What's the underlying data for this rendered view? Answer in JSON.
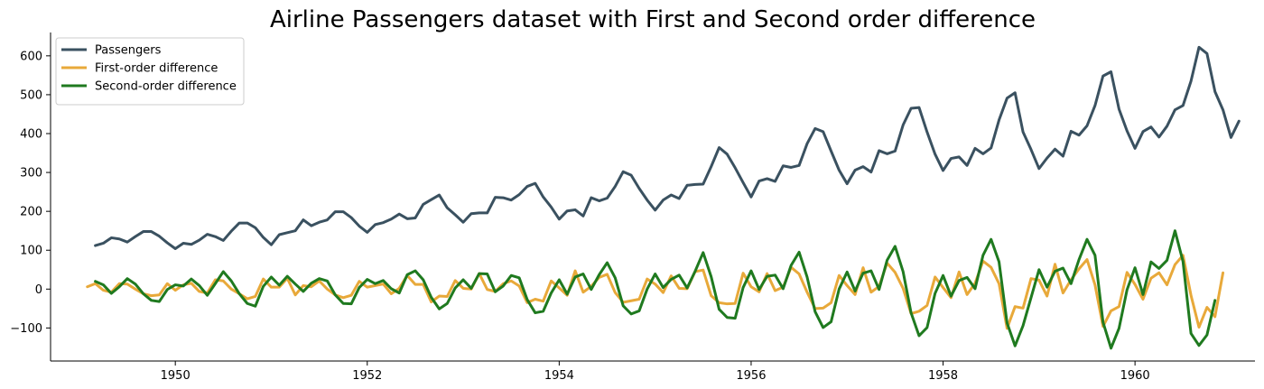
{
  "chart_data": {
    "type": "line",
    "title": "Airline Passengers dataset with First and Second order difference",
    "xlabel": "",
    "ylabel": "",
    "xlim": [
      1948.7,
      1961.25
    ],
    "ylim": [
      -185,
      660
    ],
    "x_ticks": [
      1950,
      1952,
      1954,
      1956,
      1958,
      1960
    ],
    "y_ticks": [
      -100,
      0,
      100,
      200,
      300,
      400,
      500,
      600
    ],
    "x_start": 1949.0833,
    "x_step": 0.083333,
    "grid": false,
    "legend_position": "top-left",
    "series": [
      {
        "name": "Passengers",
        "color": "#3a5160",
        "values": [
          112,
          118,
          132,
          129,
          121,
          135,
          148,
          148,
          136,
          119,
          104,
          118,
          115,
          126,
          141,
          135,
          125,
          149,
          170,
          170,
          158,
          133,
          114,
          140,
          145,
          150,
          178,
          163,
          172,
          178,
          199,
          199,
          184,
          162,
          146,
          166,
          171,
          180,
          193,
          181,
          183,
          218,
          230,
          242,
          209,
          191,
          172,
          194,
          196,
          196,
          236,
          235,
          229,
          243,
          264,
          272,
          237,
          211,
          180,
          201,
          204,
          188,
          235,
          227,
          234,
          264,
          302,
          293,
          259,
          229,
          203,
          229,
          242,
          233,
          267,
          269,
          270,
          315,
          364,
          347,
          312,
          274,
          237,
          278,
          284,
          277,
          317,
          313,
          318,
          374,
          413,
          405,
          355,
          306,
          271,
          306,
          315,
          301,
          356,
          348,
          355,
          422,
          465,
          467,
          404,
          347,
          305,
          336,
          340,
          318,
          362,
          348,
          363,
          435,
          491,
          505,
          404,
          359,
          310,
          337,
          360,
          342,
          406,
          396,
          420,
          472,
          548,
          559,
          463,
          407,
          362,
          405,
          417,
          391,
          419,
          461,
          472,
          535,
          622,
          606,
          508,
          461,
          390,
          432
        ],
        "first_index": 1
      },
      {
        "name": "First-order difference",
        "color": "#e8a93a",
        "values": [
          6,
          14,
          -3,
          -8,
          14,
          13,
          0,
          -12,
          -17,
          -15,
          14,
          -3,
          11,
          15,
          -6,
          -10,
          24,
          21,
          0,
          -12,
          -25,
          -19,
          26,
          5,
          5,
          28,
          -15,
          9,
          6,
          21,
          0,
          -15,
          -22,
          -16,
          20,
          5,
          9,
          13,
          -12,
          2,
          35,
          12,
          12,
          -33,
          -18,
          -19,
          22,
          2,
          0,
          40,
          -1,
          -6,
          14,
          21,
          8,
          -35,
          -26,
          -31,
          21,
          3,
          -16,
          47,
          -8,
          7,
          30,
          38,
          -9,
          -34,
          -30,
          -26,
          26,
          13,
          -9,
          34,
          2,
          1,
          45,
          49,
          -17,
          -35,
          -38,
          -37,
          41,
          6,
          -7,
          40,
          -4,
          5,
          56,
          39,
          -8,
          -50,
          -49,
          -35,
          35,
          9,
          -14,
          55,
          -8,
          7,
          67,
          43,
          2,
          -63,
          -57,
          -42,
          31,
          4,
          -22,
          44,
          -14,
          15,
          72,
          56,
          14,
          -101,
          -45,
          -49,
          27,
          23,
          -18,
          64,
          -10,
          24,
          52,
          76,
          11,
          -96,
          -56,
          -45,
          43,
          12,
          -26,
          28,
          42,
          11,
          63,
          87,
          -16,
          -98,
          -47,
          -71,
          42
        ],
        "first_index": 0
      },
      {
        "name": "Second-order difference",
        "color": "#1f7a1f",
        "values": [
          20,
          11,
          -11,
          6,
          27,
          13,
          -12,
          -29,
          -32,
          -1,
          11,
          8,
          26,
          9,
          -16,
          14,
          45,
          21,
          -12,
          -37,
          -44,
          7,
          31,
          10,
          33,
          13,
          -6,
          15,
          27,
          21,
          -15,
          -37,
          -38,
          4,
          25,
          14,
          22,
          1,
          -10,
          37,
          47,
          24,
          -21,
          -51,
          -37,
          3,
          24,
          2,
          40,
          39,
          -7,
          8,
          35,
          29,
          -27,
          -61,
          -57,
          -10,
          24,
          -13,
          31,
          39,
          -1,
          37,
          68,
          29,
          -43,
          -64,
          -56,
          0,
          39,
          4,
          25,
          36,
          3,
          46,
          94,
          32,
          -52,
          -73,
          -75,
          4,
          47,
          -1,
          33,
          36,
          1,
          61,
          95,
          31,
          -58,
          -99,
          -84,
          0,
          44,
          -5,
          41,
          47,
          -1,
          74,
          110,
          45,
          -61,
          -120,
          -99,
          -11,
          35,
          -18,
          22,
          30,
          1,
          87,
          128,
          70,
          -87,
          -146,
          -94,
          -22,
          50,
          5,
          46,
          54,
          14,
          76,
          128,
          87,
          -85,
          -152,
          -101,
          -2,
          55,
          -14,
          70,
          53,
          74,
          150,
          71,
          -114,
          -145,
          -118,
          -29
        ],
        "first_index": 1
      }
    ]
  }
}
